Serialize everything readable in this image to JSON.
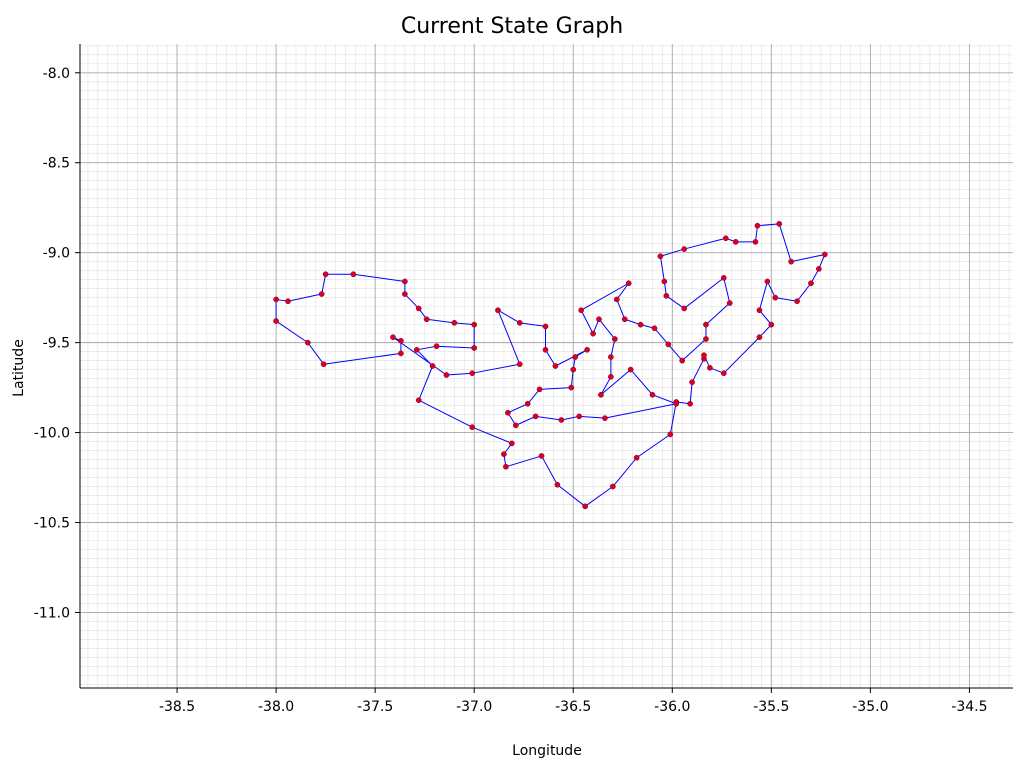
{
  "chart_data": {
    "type": "line",
    "title": "Current State Graph",
    "xlabel": "Longitude",
    "ylabel": "Latitude",
    "xlim": [
      -38.99,
      -34.28
    ],
    "ylim": [
      -11.42,
      -7.84
    ],
    "xticks": [
      -38.5,
      -38.0,
      -37.5,
      -37.0,
      -36.5,
      -36.0,
      -35.5,
      -35.0,
      -34.5
    ],
    "yticks": [
      -8.0,
      -8.5,
      -9.0,
      -9.5,
      -10.0,
      -10.5,
      -11.0
    ],
    "xtick_labels": [
      "-38.5",
      "-38.0",
      "-37.5",
      "-37.0",
      "-36.5",
      "-36.0",
      "-35.5",
      "-35.0",
      "-34.5"
    ],
    "ytick_labels": [
      "-8.0",
      "-8.5",
      "-9.0",
      "-9.5",
      "-10.0",
      "-10.5",
      "-11.0"
    ],
    "grid": true,
    "minor_grid": true,
    "line_color": "#0000ff",
    "marker_color": "#dc0020",
    "series": [
      {
        "closed": true,
        "points": [
          [
            -38.0,
            -9.26
          ],
          [
            -37.94,
            -9.27
          ],
          [
            -37.77,
            -9.23
          ],
          [
            -37.75,
            -9.12
          ],
          [
            -37.61,
            -9.12
          ],
          [
            -37.35,
            -9.16
          ],
          [
            -37.35,
            -9.23
          ],
          [
            -37.28,
            -9.31
          ],
          [
            -37.24,
            -9.37
          ],
          [
            -37.1,
            -9.39
          ],
          [
            -37.0,
            -9.4
          ],
          [
            -37.0,
            -9.53
          ],
          [
            -37.19,
            -9.52
          ],
          [
            -37.29,
            -9.54
          ],
          [
            -37.21,
            -9.63
          ],
          [
            -37.28,
            -9.82
          ],
          [
            -37.01,
            -9.97
          ],
          [
            -36.81,
            -10.06
          ],
          [
            -36.85,
            -10.12
          ],
          [
            -36.84,
            -10.19
          ],
          [
            -36.66,
            -10.13
          ],
          [
            -36.58,
            -10.29
          ],
          [
            -36.44,
            -10.41
          ],
          [
            -36.3,
            -10.3
          ],
          [
            -36.18,
            -10.14
          ],
          [
            -36.01,
            -10.01
          ],
          [
            -35.98,
            -9.83
          ],
          [
            -35.91,
            -9.84
          ],
          [
            -35.9,
            -9.72
          ],
          [
            -35.84,
            -9.59
          ],
          [
            -35.84,
            -9.57
          ],
          [
            -35.81,
            -9.64
          ],
          [
            -35.74,
            -9.67
          ],
          [
            -35.56,
            -9.47
          ],
          [
            -35.5,
            -9.4
          ],
          [
            -35.56,
            -9.32
          ],
          [
            -35.52,
            -9.16
          ],
          [
            -35.48,
            -9.25
          ],
          [
            -35.37,
            -9.27
          ],
          [
            -35.3,
            -9.17
          ],
          [
            -35.26,
            -9.09
          ],
          [
            -35.23,
            -9.01
          ],
          [
            -35.4,
            -9.05
          ],
          [
            -35.46,
            -8.84
          ],
          [
            -35.57,
            -8.85
          ],
          [
            -35.58,
            -8.94
          ],
          [
            -35.68,
            -8.94
          ],
          [
            -35.73,
            -8.92
          ],
          [
            -35.94,
            -8.98
          ],
          [
            -36.06,
            -9.02
          ],
          [
            -36.04,
            -9.16
          ],
          [
            -36.03,
            -9.24
          ],
          [
            -35.94,
            -9.31
          ],
          [
            -35.74,
            -9.14
          ],
          [
            -35.71,
            -9.28
          ],
          [
            -35.83,
            -9.4
          ],
          [
            -35.83,
            -9.48
          ],
          [
            -35.95,
            -9.6
          ],
          [
            -36.02,
            -9.51
          ],
          [
            -36.09,
            -9.42
          ],
          [
            -36.16,
            -9.4
          ],
          [
            -36.24,
            -9.37
          ],
          [
            -36.28,
            -9.26
          ],
          [
            -36.22,
            -9.17
          ],
          [
            -36.46,
            -9.32
          ],
          [
            -36.4,
            -9.45
          ],
          [
            -36.37,
            -9.37
          ],
          [
            -36.29,
            -9.48
          ],
          [
            -36.31,
            -9.58
          ],
          [
            -36.31,
            -9.69
          ],
          [
            -36.36,
            -9.79
          ],
          [
            -36.21,
            -9.65
          ],
          [
            -36.1,
            -9.79
          ],
          [
            -35.98,
            -9.84
          ],
          [
            -36.34,
            -9.92
          ],
          [
            -36.47,
            -9.91
          ],
          [
            -36.56,
            -9.93
          ],
          [
            -36.69,
            -9.91
          ],
          [
            -36.79,
            -9.96
          ],
          [
            -36.83,
            -9.89
          ],
          [
            -36.73,
            -9.84
          ],
          [
            -36.67,
            -9.76
          ],
          [
            -36.51,
            -9.75
          ],
          [
            -36.5,
            -9.65
          ],
          [
            -36.49,
            -9.58
          ],
          [
            -36.43,
            -9.54
          ],
          [
            -36.59,
            -9.63
          ],
          [
            -36.64,
            -9.54
          ],
          [
            -36.64,
            -9.41
          ],
          [
            -36.77,
            -9.39
          ],
          [
            -36.88,
            -9.32
          ],
          [
            -36.77,
            -9.62
          ],
          [
            -37.01,
            -9.67
          ],
          [
            -37.14,
            -9.68
          ],
          [
            -37.41,
            -9.47
          ],
          [
            -37.37,
            -9.49
          ],
          [
            -37.37,
            -9.56
          ],
          [
            -37.76,
            -9.62
          ],
          [
            -37.84,
            -9.5
          ],
          [
            -38.0,
            -9.38
          ]
        ]
      }
    ]
  }
}
